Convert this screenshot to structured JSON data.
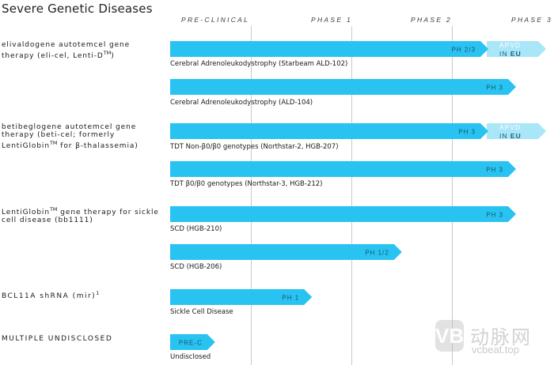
{
  "title": "Severe Genetic Diseases",
  "chart_data": {
    "type": "gantt-pipeline",
    "phases": [
      "PRE-CLINICAL",
      "PHASE 1",
      "PHASE 2",
      "PHASE 3"
    ],
    "programs": [
      {
        "name": "elivaldogene autotemcel gene therapy (eli-cel, Lenti-D",
        "sup": "TM",
        "name_after": ")"
      },
      {
        "name": "betibeglogene autotemcel gene therapy (beti-cel; formerly LentiGlobin",
        "sup": "TM",
        "name_after": " for β-thalassemia)"
      },
      {
        "name": "LentiGlobin",
        "sup": "TM",
        "name_after": " gene therapy for sickle cell disease (bb1111)"
      },
      {
        "name": "BCL11A shRNA (mir)",
        "sup": "1",
        "name_after": ""
      },
      {
        "name": "MULTIPLE UNDISCLOSED",
        "sup": "",
        "name_after": ""
      }
    ],
    "bars": [
      {
        "program": 0,
        "indication": "Cerebral Adrenoleukodystrophy (Starbeam ALD-102)",
        "stage_label": "PH 2/3",
        "progress": 0.92,
        "extension": {
          "line1": "APVD",
          "line2_prefix": "IN ",
          "line2_strong": "EU"
        }
      },
      {
        "program": 0,
        "indication": "Cerebral Adrenoleukodystrophy (ALD-104)",
        "stage_label": "PH 3",
        "progress": 1.0,
        "extension": null
      },
      {
        "program": 1,
        "indication": "TDT Non-β0/β0 genotypes (Northstar-2, HGB-207)",
        "stage_label": "PH 3",
        "progress": 0.92,
        "extension": {
          "line1": "APVD",
          "line2_prefix": "IN ",
          "line2_strong": "EU"
        }
      },
      {
        "program": 1,
        "indication": "TDT β0/β0 genotypes (Northstar-3, HGB-212)",
        "stage_label": "PH 3",
        "progress": 1.0,
        "extension": null
      },
      {
        "program": 2,
        "indication": "SCD (HGB-210)",
        "stage_label": "PH 3",
        "progress": 1.0,
        "extension": null
      },
      {
        "program": 2,
        "indication": "SCD (HGB-206)",
        "stage_label": "PH 1/2",
        "progress": 0.67,
        "extension": null
      },
      {
        "program": 3,
        "indication": "Sickle Cell Disease",
        "stage_label": "PH 1",
        "progress": 0.41,
        "extension": null
      },
      {
        "program": 4,
        "indication": "Undisclosed",
        "stage_label": "PRE-C",
        "progress": 0.13,
        "extension": null
      }
    ]
  },
  "watermark": {
    "logo": "VB",
    "cn": "动脉网",
    "url": "vcbeat.top"
  },
  "colors": {
    "bar": "#29c3f2",
    "extension": "#a9e6f8",
    "bar_text": "#17536b",
    "gridline": "#c8c8c8"
  }
}
